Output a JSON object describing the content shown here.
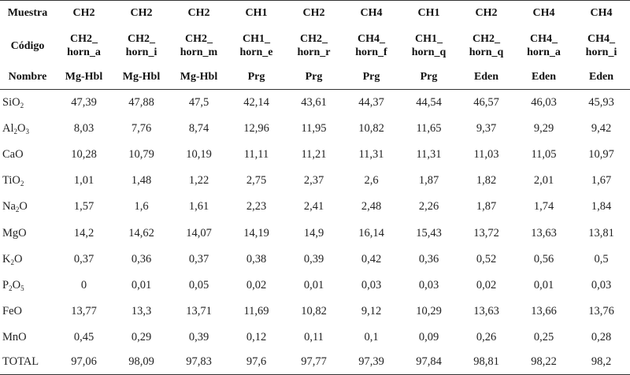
{
  "table": {
    "header_labels": {
      "muestra": "Muestra",
      "codigo": "Código",
      "nombre": "Nombre"
    },
    "columns": [
      {
        "muestra": "CH2",
        "codigo_1": "CH2_",
        "codigo_2": "horn_a",
        "nombre": "Mg-Hbl"
      },
      {
        "muestra": "CH2",
        "codigo_1": "CH2_",
        "codigo_2": "horn_i",
        "nombre": "Mg-Hbl"
      },
      {
        "muestra": "CH2",
        "codigo_1": "CH2_",
        "codigo_2": "horn_m",
        "nombre": "Mg-Hbl"
      },
      {
        "muestra": "CH1",
        "codigo_1": "CH1_",
        "codigo_2": "horn_e",
        "nombre": "Prg"
      },
      {
        "muestra": "CH2",
        "codigo_1": "CH2_",
        "codigo_2": "horn_r",
        "nombre": "Prg"
      },
      {
        "muestra": "CH4",
        "codigo_1": "CH4_",
        "codigo_2": "horn_f",
        "nombre": "Prg"
      },
      {
        "muestra": "CH1",
        "codigo_1": "CH1_",
        "codigo_2": "horn_q",
        "nombre": "Prg"
      },
      {
        "muestra": "CH2",
        "codigo_1": "CH2_",
        "codigo_2": "horn_q",
        "nombre": "Eden"
      },
      {
        "muestra": "CH4",
        "codigo_1": "CH4_",
        "codigo_2": "horn_a",
        "nombre": "Eden"
      },
      {
        "muestra": "CH4",
        "codigo_1": "CH4_",
        "codigo_2": "horn_i",
        "nombre": "Eden"
      }
    ],
    "rows": [
      {
        "label": {
          "a": "SiO",
          "s1": "2",
          "b": "",
          "s2": "",
          "c": ""
        },
        "values": [
          "47,39",
          "47,88",
          "47,5",
          "42,14",
          "43,61",
          "44,37",
          "44,54",
          "46,57",
          "46,03",
          "45,93"
        ]
      },
      {
        "label": {
          "a": "Al",
          "s1": "2",
          "b": "O",
          "s2": "3",
          "c": ""
        },
        "values": [
          "8,03",
          "7,76",
          "8,74",
          "12,96",
          "11,95",
          "10,82",
          "11,65",
          "9,37",
          "9,29",
          "9,42"
        ]
      },
      {
        "label": {
          "a": "CaO",
          "s1": "",
          "b": "",
          "s2": "",
          "c": ""
        },
        "values": [
          "10,28",
          "10,79",
          "10,19",
          "11,11",
          "11,21",
          "11,31",
          "11,31",
          "11,03",
          "11,05",
          "10,97"
        ]
      },
      {
        "label": {
          "a": "TiO",
          "s1": "2",
          "b": "",
          "s2": "",
          "c": ""
        },
        "values": [
          "1,01",
          "1,48",
          "1,22",
          "2,75",
          "2,37",
          "2,6",
          "1,87",
          "1,82",
          "2,01",
          "1,67"
        ]
      },
      {
        "label": {
          "a": "Na",
          "s1": "2",
          "b": "O",
          "s2": "",
          "c": ""
        },
        "values": [
          "1,57",
          "1,6",
          "1,61",
          "2,23",
          "2,41",
          "2,48",
          "2,26",
          "1,87",
          "1,74",
          "1,84"
        ]
      },
      {
        "label": {
          "a": "MgO",
          "s1": "",
          "b": "",
          "s2": "",
          "c": ""
        },
        "values": [
          "14,2",
          "14,62",
          "14,07",
          "14,19",
          "14,9",
          "16,14",
          "15,43",
          "13,72",
          "13,63",
          "13,81"
        ]
      },
      {
        "label": {
          "a": "K",
          "s1": "2",
          "b": "O",
          "s2": "",
          "c": ""
        },
        "values": [
          "0,37",
          "0,36",
          "0,37",
          "0,38",
          "0,39",
          "0,42",
          "0,36",
          "0,52",
          "0,56",
          "0,5"
        ]
      },
      {
        "label": {
          "a": "P",
          "s1": "2",
          "b": "O",
          "s2": "5",
          "c": ""
        },
        "values": [
          "0",
          "0,01",
          "0,05",
          "0,02",
          "0,01",
          "0,03",
          "0,03",
          "0,02",
          "0,01",
          "0,03"
        ]
      },
      {
        "label": {
          "a": "FeO",
          "s1": "",
          "b": "",
          "s2": "",
          "c": ""
        },
        "values": [
          "13,77",
          "13,3",
          "13,71",
          "11,69",
          "10,82",
          "9,12",
          "10,29",
          "13,63",
          "13,66",
          "13,76"
        ]
      },
      {
        "label": {
          "a": "MnO",
          "s1": "",
          "b": "",
          "s2": "",
          "c": ""
        },
        "values": [
          "0,45",
          "0,29",
          "0,39",
          "0,12",
          "0,11",
          "0,1",
          "0,09",
          "0,26",
          "0,25",
          "0,28"
        ]
      },
      {
        "label": {
          "a": "TOTAL",
          "s1": "",
          "b": "",
          "s2": "",
          "c": ""
        },
        "values": [
          "97,06",
          "98,09",
          "97,83",
          "97,6",
          "97,77",
          "97,39",
          "97,84",
          "98,81",
          "98,22",
          "98,2"
        ]
      }
    ]
  }
}
